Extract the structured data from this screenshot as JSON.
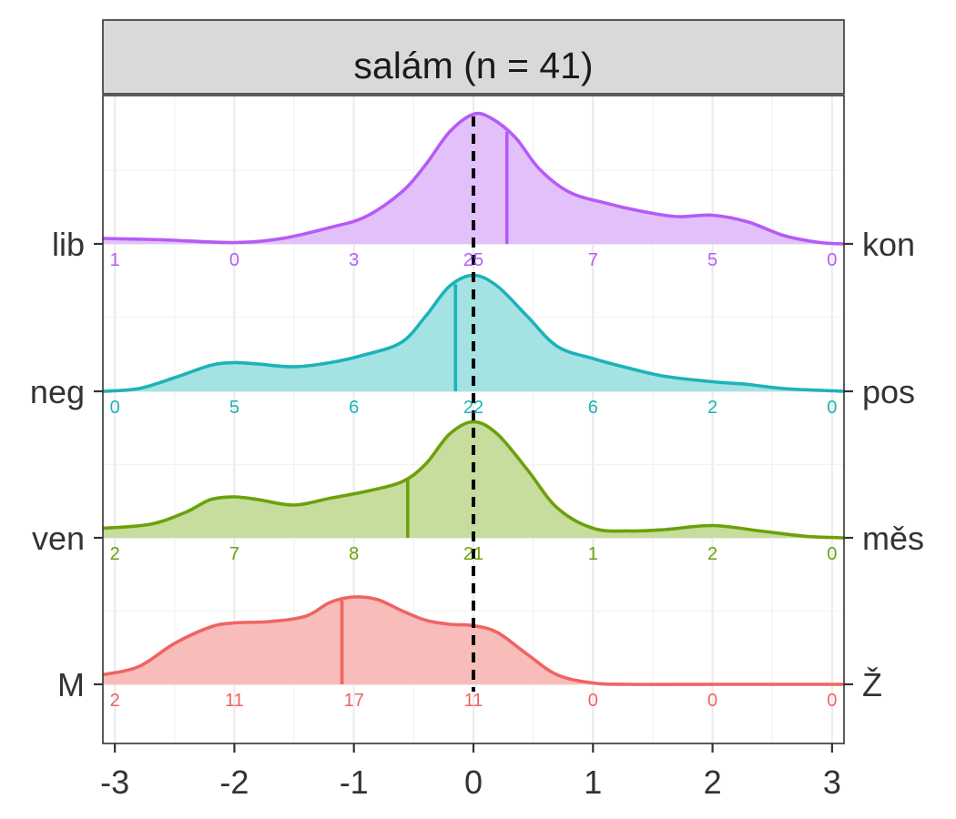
{
  "chart_data": {
    "type": "ridgeline-density",
    "facet_title": "salám (n = 41)",
    "xlim": [
      -3.1,
      3.1
    ],
    "x_ticks": [
      "-3",
      "-2",
      "-1",
      "0",
      "1",
      "2",
      "3"
    ],
    "x_tick_values": [
      -3,
      -2,
      -1,
      0,
      1,
      2,
      3
    ],
    "reference_line": 0,
    "grid": true,
    "count_positions": [
      -3,
      -2,
      -1,
      0,
      1,
      2,
      3
    ],
    "rows": [
      {
        "left_label": "lib",
        "right_label": "kon",
        "color": "#B55BF6",
        "fill": "#E2C1FB",
        "mean": 0.28,
        "counts": [
          "1",
          "0",
          "3",
          "25",
          "7",
          "5",
          "0"
        ],
        "density": [
          [
            -3.1,
            0.04
          ],
          [
            -2.6,
            0.03
          ],
          [
            -2.0,
            0.01
          ],
          [
            -1.6,
            0.04
          ],
          [
            -1.2,
            0.12
          ],
          [
            -0.9,
            0.2
          ],
          [
            -0.6,
            0.38
          ],
          [
            -0.4,
            0.58
          ],
          [
            -0.2,
            0.82
          ],
          [
            0.0,
            0.95
          ],
          [
            0.15,
            0.92
          ],
          [
            0.35,
            0.78
          ],
          [
            0.55,
            0.55
          ],
          [
            0.8,
            0.38
          ],
          [
            1.1,
            0.3
          ],
          [
            1.4,
            0.24
          ],
          [
            1.7,
            0.2
          ],
          [
            2.0,
            0.21
          ],
          [
            2.3,
            0.16
          ],
          [
            2.6,
            0.06
          ],
          [
            2.9,
            0.01
          ],
          [
            3.1,
            0.0
          ]
        ]
      },
      {
        "left_label": "neg",
        "right_label": "pos",
        "color": "#1CB3B8",
        "fill": "#A5E2E3",
        "mean": -0.15,
        "counts": [
          "0",
          "5",
          "6",
          "22",
          "6",
          "2",
          "0"
        ],
        "density": [
          [
            -3.1,
            0.0
          ],
          [
            -2.8,
            0.02
          ],
          [
            -2.5,
            0.1
          ],
          [
            -2.2,
            0.19
          ],
          [
            -2.0,
            0.21
          ],
          [
            -1.8,
            0.2
          ],
          [
            -1.5,
            0.18
          ],
          [
            -1.2,
            0.21
          ],
          [
            -0.9,
            0.27
          ],
          [
            -0.6,
            0.36
          ],
          [
            -0.4,
            0.55
          ],
          [
            -0.2,
            0.77
          ],
          [
            0.0,
            0.85
          ],
          [
            0.2,
            0.77
          ],
          [
            0.45,
            0.55
          ],
          [
            0.7,
            0.33
          ],
          [
            1.0,
            0.24
          ],
          [
            1.3,
            0.17
          ],
          [
            1.6,
            0.11
          ],
          [
            2.0,
            0.07
          ],
          [
            2.3,
            0.05
          ],
          [
            2.6,
            0.02
          ],
          [
            3.1,
            0.0
          ]
        ]
      },
      {
        "left_label": "ven",
        "right_label": "měs",
        "color": "#6BA10A",
        "fill": "#C6DD9E",
        "mean": -0.55,
        "counts": [
          "2",
          "7",
          "8",
          "21",
          "1",
          "2",
          "0"
        ],
        "density": [
          [
            -3.1,
            0.07
          ],
          [
            -2.7,
            0.1
          ],
          [
            -2.4,
            0.19
          ],
          [
            -2.2,
            0.28
          ],
          [
            -2.0,
            0.3
          ],
          [
            -1.8,
            0.28
          ],
          [
            -1.5,
            0.24
          ],
          [
            -1.2,
            0.29
          ],
          [
            -0.9,
            0.34
          ],
          [
            -0.6,
            0.41
          ],
          [
            -0.4,
            0.54
          ],
          [
            -0.2,
            0.76
          ],
          [
            0.0,
            0.85
          ],
          [
            0.2,
            0.76
          ],
          [
            0.45,
            0.5
          ],
          [
            0.7,
            0.22
          ],
          [
            1.0,
            0.07
          ],
          [
            1.3,
            0.05
          ],
          [
            1.6,
            0.06
          ],
          [
            2.0,
            0.09
          ],
          [
            2.4,
            0.05
          ],
          [
            2.8,
            0.01
          ],
          [
            3.1,
            0.0
          ]
        ]
      },
      {
        "left_label": "M",
        "right_label": "Ž",
        "color": "#EF6462",
        "fill": "#F8BDBA",
        "mean": -1.1,
        "counts": [
          "2",
          "11",
          "17",
          "11",
          "0",
          "0",
          "0"
        ],
        "density": [
          [
            -3.1,
            0.07
          ],
          [
            -2.8,
            0.13
          ],
          [
            -2.5,
            0.3
          ],
          [
            -2.2,
            0.42
          ],
          [
            -2.0,
            0.45
          ],
          [
            -1.7,
            0.46
          ],
          [
            -1.4,
            0.5
          ],
          [
            -1.2,
            0.6
          ],
          [
            -1.0,
            0.64
          ],
          [
            -0.8,
            0.62
          ],
          [
            -0.6,
            0.54
          ],
          [
            -0.4,
            0.47
          ],
          [
            -0.2,
            0.44
          ],
          [
            0.0,
            0.43
          ],
          [
            0.2,
            0.38
          ],
          [
            0.45,
            0.22
          ],
          [
            0.7,
            0.07
          ],
          [
            1.0,
            0.01
          ],
          [
            1.3,
            0.0
          ],
          [
            2.0,
            0.0
          ],
          [
            3.1,
            0.0
          ]
        ]
      }
    ]
  }
}
